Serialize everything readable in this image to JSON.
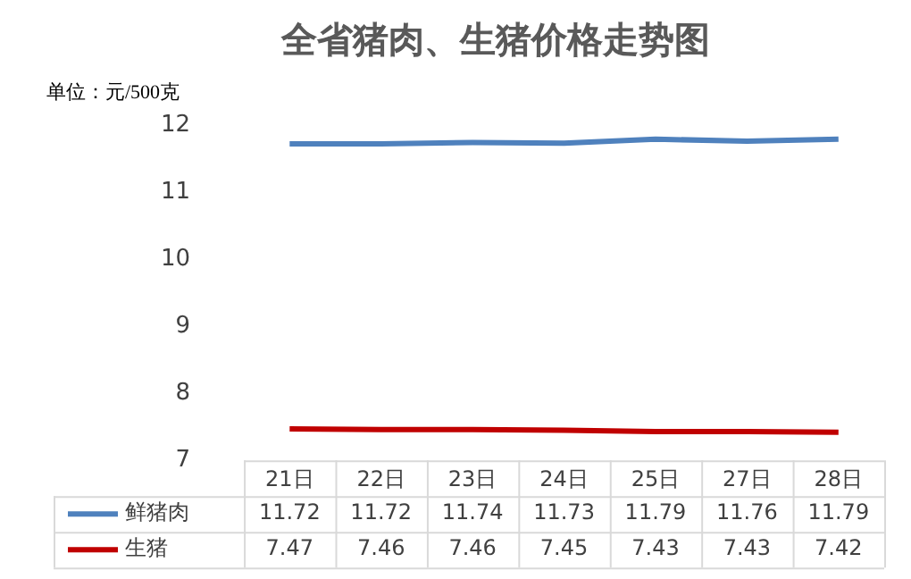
{
  "chart_data": {
    "type": "line",
    "title": "全省猪肉、生猪价格走势图",
    "ylabel": "单位：元/500克",
    "categories": [
      "21日",
      "22日",
      "23日",
      "24日",
      "25日",
      "27日",
      "28日"
    ],
    "series": [
      {
        "name": "鲜猪肉",
        "color": "#4f81bd",
        "values": [
          11.72,
          11.72,
          11.74,
          11.73,
          11.79,
          11.76,
          11.79
        ]
      },
      {
        "name": "生猪",
        "color": "#c00000",
        "values": [
          7.47,
          7.46,
          7.46,
          7.45,
          7.43,
          7.43,
          7.42
        ]
      }
    ],
    "ylim": [
      7,
      12
    ],
    "yticks": [
      7,
      8,
      9,
      10,
      11,
      12
    ],
    "grid": false,
    "legend": "bottom left",
    "data_labels": true,
    "marker": "none",
    "line_style": "solid"
  }
}
